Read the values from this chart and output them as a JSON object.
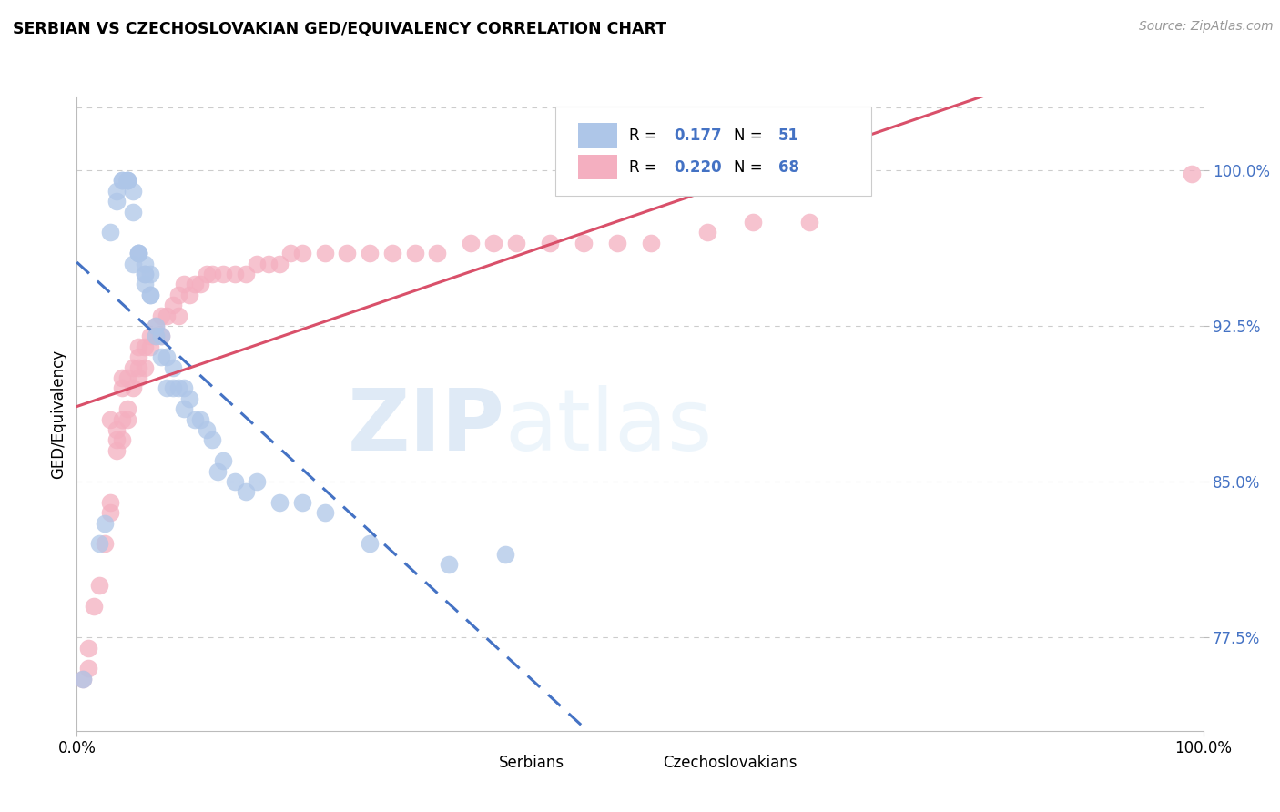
{
  "title": "SERBIAN VS CZECHOSLOVAKIAN GED/EQUIVALENCY CORRELATION CHART",
  "source": "Source: ZipAtlas.com",
  "ylabel": "GED/Equivalency",
  "y_ticks": [
    0.775,
    0.85,
    0.925,
    1.0
  ],
  "y_tick_labels": [
    "77.5%",
    "85.0%",
    "92.5%",
    "100.0%"
  ],
  "xmin": 0.0,
  "xmax": 1.0,
  "ymin": 0.73,
  "ymax": 1.035,
  "legend_r_serbian": "0.177",
  "legend_n_serbian": "51",
  "legend_r_czech": "0.220",
  "legend_n_czech": "68",
  "serbian_fill_color": "#aec6e8",
  "czech_fill_color": "#f4afc0",
  "serbian_line_color": "#4472c4",
  "czech_line_color": "#d9506a",
  "watermark_zip": "ZIP",
  "watermark_atlas": "atlas",
  "serbian_points_x": [
    0.005,
    0.02,
    0.025,
    0.03,
    0.035,
    0.035,
    0.04,
    0.04,
    0.045,
    0.045,
    0.045,
    0.05,
    0.05,
    0.05,
    0.055,
    0.055,
    0.055,
    0.06,
    0.06,
    0.06,
    0.06,
    0.065,
    0.065,
    0.065,
    0.07,
    0.07,
    0.075,
    0.075,
    0.08,
    0.08,
    0.085,
    0.085,
    0.09,
    0.095,
    0.095,
    0.1,
    0.105,
    0.11,
    0.115,
    0.12,
    0.125,
    0.13,
    0.14,
    0.15,
    0.16,
    0.18,
    0.2,
    0.22,
    0.26,
    0.33,
    0.38
  ],
  "serbian_points_y": [
    0.755,
    0.82,
    0.83,
    0.97,
    0.985,
    0.99,
    0.995,
    0.995,
    0.995,
    0.995,
    0.995,
    0.99,
    0.98,
    0.955,
    0.96,
    0.96,
    0.96,
    0.955,
    0.95,
    0.95,
    0.945,
    0.95,
    0.94,
    0.94,
    0.925,
    0.92,
    0.92,
    0.91,
    0.91,
    0.895,
    0.905,
    0.895,
    0.895,
    0.895,
    0.885,
    0.89,
    0.88,
    0.88,
    0.875,
    0.87,
    0.855,
    0.86,
    0.85,
    0.845,
    0.85,
    0.84,
    0.84,
    0.835,
    0.82,
    0.81,
    0.815
  ],
  "czech_points_x": [
    0.005,
    0.01,
    0.01,
    0.015,
    0.02,
    0.025,
    0.03,
    0.03,
    0.03,
    0.035,
    0.035,
    0.035,
    0.04,
    0.04,
    0.04,
    0.04,
    0.045,
    0.045,
    0.045,
    0.05,
    0.05,
    0.055,
    0.055,
    0.055,
    0.055,
    0.06,
    0.06,
    0.065,
    0.065,
    0.07,
    0.07,
    0.075,
    0.075,
    0.08,
    0.085,
    0.09,
    0.09,
    0.095,
    0.1,
    0.105,
    0.11,
    0.115,
    0.12,
    0.13,
    0.14,
    0.15,
    0.16,
    0.17,
    0.18,
    0.19,
    0.2,
    0.22,
    0.24,
    0.26,
    0.28,
    0.3,
    0.32,
    0.35,
    0.37,
    0.39,
    0.42,
    0.45,
    0.48,
    0.51,
    0.56,
    0.6,
    0.65,
    0.99
  ],
  "czech_points_y": [
    0.755,
    0.76,
    0.77,
    0.79,
    0.8,
    0.82,
    0.835,
    0.84,
    0.88,
    0.865,
    0.87,
    0.875,
    0.87,
    0.88,
    0.895,
    0.9,
    0.88,
    0.885,
    0.9,
    0.895,
    0.905,
    0.9,
    0.905,
    0.91,
    0.915,
    0.905,
    0.915,
    0.915,
    0.92,
    0.92,
    0.925,
    0.92,
    0.93,
    0.93,
    0.935,
    0.93,
    0.94,
    0.945,
    0.94,
    0.945,
    0.945,
    0.95,
    0.95,
    0.95,
    0.95,
    0.95,
    0.955,
    0.955,
    0.955,
    0.96,
    0.96,
    0.96,
    0.96,
    0.96,
    0.96,
    0.96,
    0.96,
    0.965,
    0.965,
    0.965,
    0.965,
    0.965,
    0.965,
    0.965,
    0.97,
    0.975,
    0.975,
    0.998
  ]
}
